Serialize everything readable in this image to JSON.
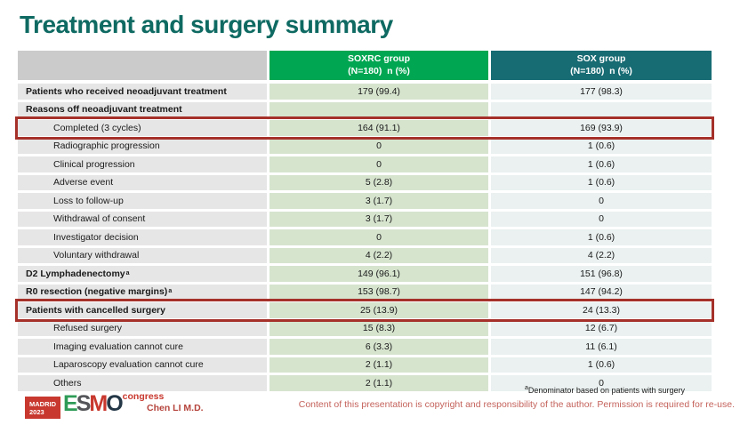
{
  "slide": {
    "title": "Treatment and surgery summary",
    "presenter": "Chen LI M.D.",
    "footnote_marker": "a",
    "footnote": "Denominator based on patients with surgery",
    "copyright": "Content of this presentation is copyright and responsibility of the author. Permission is required for re-use."
  },
  "logo": {
    "location": "MADRID",
    "year": "2023",
    "letters": [
      "E",
      "S",
      "M",
      "O"
    ],
    "suffix": "congress"
  },
  "table": {
    "columns": [
      {
        "line1": "SOXRC group",
        "line2": "(N=180)  n (%)"
      },
      {
        "line1": "SOX group",
        "line2": "(N=180)  n (%)"
      }
    ],
    "rows": [
      {
        "label": "Patients who received neoadjuvant treatment",
        "sup": "",
        "bold": true,
        "indent": false,
        "highlight": false,
        "soxrc": "179 (99.4)",
        "sox": "177 (98.3)"
      },
      {
        "label": "Reasons off neoadjuvant treatment",
        "sup": "",
        "bold": true,
        "indent": false,
        "highlight": false,
        "soxrc": "",
        "sox": ""
      },
      {
        "label": "Completed (3 cycles)",
        "sup": "",
        "bold": false,
        "indent": true,
        "highlight": true,
        "soxrc": "164 (91.1)",
        "sox": "169 (93.9)"
      },
      {
        "label": "Radiographic progression",
        "sup": "",
        "bold": false,
        "indent": true,
        "highlight": false,
        "soxrc": "0",
        "sox": "1 (0.6)"
      },
      {
        "label": "Clinical progression",
        "sup": "",
        "bold": false,
        "indent": true,
        "highlight": false,
        "soxrc": "0",
        "sox": "1 (0.6)"
      },
      {
        "label": "Adverse event",
        "sup": "",
        "bold": false,
        "indent": true,
        "highlight": false,
        "soxrc": "5 (2.8)",
        "sox": "1 (0.6)"
      },
      {
        "label": "Loss to follow-up",
        "sup": "",
        "bold": false,
        "indent": true,
        "highlight": false,
        "soxrc": "3 (1.7)",
        "sox": "0"
      },
      {
        "label": "Withdrawal of consent",
        "sup": "",
        "bold": false,
        "indent": true,
        "highlight": false,
        "soxrc": "3 (1.7)",
        "sox": "0"
      },
      {
        "label": "Investigator decision",
        "sup": "",
        "bold": false,
        "indent": true,
        "highlight": false,
        "soxrc": "0",
        "sox": "1 (0.6)"
      },
      {
        "label": "Voluntary withdrawal",
        "sup": "",
        "bold": false,
        "indent": true,
        "highlight": false,
        "soxrc": "4 (2.2)",
        "sox": "4 (2.2)"
      },
      {
        "label": "D2 Lymphadenectomy",
        "sup": "a",
        "bold": true,
        "indent": false,
        "highlight": false,
        "soxrc": "149 (96.1)",
        "sox": "151 (96.8)"
      },
      {
        "label": "R0 resection (negative margins)",
        "sup": "a",
        "bold": true,
        "indent": false,
        "highlight": false,
        "soxrc": "153 (98.7)",
        "sox": "147 (94.2)"
      },
      {
        "label": "Patients with cancelled surgery",
        "sup": "",
        "bold": true,
        "indent": false,
        "highlight": true,
        "soxrc": "25 (13.9)",
        "sox": "24 (13.3)"
      },
      {
        "label": "Refused surgery",
        "sup": "",
        "bold": false,
        "indent": true,
        "highlight": false,
        "soxrc": "15 (8.3)",
        "sox": "12 (6.7)"
      },
      {
        "label": "Imaging evaluation cannot cure",
        "sup": "",
        "bold": false,
        "indent": true,
        "highlight": false,
        "soxrc": "6 (3.3)",
        "sox": "11 (6.1)"
      },
      {
        "label": "Laparoscopy evaluation cannot cure",
        "sup": "",
        "bold": false,
        "indent": true,
        "highlight": false,
        "soxrc": "2 (1.1)",
        "sox": "1 (0.6)"
      },
      {
        "label": "Others",
        "sup": "",
        "bold": false,
        "indent": true,
        "highlight": false,
        "soxrc": "2 (1.1)",
        "sox": "0"
      }
    ]
  },
  "colors": {
    "title": "#0E6A62",
    "header_empty": "#CBCBCB",
    "header_soxrc": "#00A651",
    "header_sox": "#176B73",
    "cell_label": "#E7E6E6",
    "cell_soxrc": "#D6E4CE",
    "cell_sox": "#EAF1F0",
    "highlight_border": "#A5312A",
    "footer_red": "#C4625B",
    "presenter_red": "#B5443C",
    "logo_red": "#C8382E",
    "esmo_green": "#2E9B57",
    "esmo_gray": "#54565A",
    "esmo_dark": "#243746"
  }
}
